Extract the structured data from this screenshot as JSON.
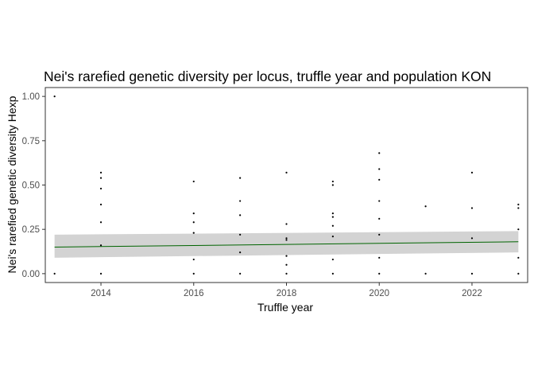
{
  "chart_data": {
    "type": "scatter",
    "title": "Nei's rarefied genetic diversity per locus, truffle year and population KON",
    "xlabel": "Truffle year",
    "ylabel": "Nei's rarefied genetic diversity Hexp",
    "xlim": [
      2012.8,
      2023.2
    ],
    "ylim": [
      -0.05,
      1.05
    ],
    "x_ticks": [
      2014,
      2016,
      2018,
      2020,
      2022
    ],
    "y_ticks": [
      0.0,
      0.25,
      0.5,
      0.75,
      1.0
    ],
    "x_tick_labels": [
      "2014",
      "2016",
      "2018",
      "2020",
      "2022"
    ],
    "y_tick_labels": [
      "0.00",
      "0.25",
      "0.50",
      "0.75",
      "1.00"
    ],
    "grid": false,
    "panel_border": true,
    "points": [
      {
        "x": 2013,
        "y": 1.0
      },
      {
        "x": 2013,
        "y": 0.0
      },
      {
        "x": 2014,
        "y": 0.57
      },
      {
        "x": 2014,
        "y": 0.54
      },
      {
        "x": 2014,
        "y": 0.48
      },
      {
        "x": 2014,
        "y": 0.39
      },
      {
        "x": 2014,
        "y": 0.29
      },
      {
        "x": 2014,
        "y": 0.16
      },
      {
        "x": 2014,
        "y": 0.0
      },
      {
        "x": 2016,
        "y": 0.52
      },
      {
        "x": 2016,
        "y": 0.34
      },
      {
        "x": 2016,
        "y": 0.29
      },
      {
        "x": 2016,
        "y": 0.23
      },
      {
        "x": 2016,
        "y": 0.08
      },
      {
        "x": 2016,
        "y": 0.0
      },
      {
        "x": 2017,
        "y": 0.54
      },
      {
        "x": 2017,
        "y": 0.41
      },
      {
        "x": 2017,
        "y": 0.33
      },
      {
        "x": 2017,
        "y": 0.22
      },
      {
        "x": 2017,
        "y": 0.12
      },
      {
        "x": 2017,
        "y": 0.0
      },
      {
        "x": 2018,
        "y": 0.57
      },
      {
        "x": 2018,
        "y": 0.28
      },
      {
        "x": 2018,
        "y": 0.2
      },
      {
        "x": 2018,
        "y": 0.19
      },
      {
        "x": 2018,
        "y": 0.1
      },
      {
        "x": 2018,
        "y": 0.05
      },
      {
        "x": 2018,
        "y": 0.0
      },
      {
        "x": 2019,
        "y": 0.52
      },
      {
        "x": 2019,
        "y": 0.5
      },
      {
        "x": 2019,
        "y": 0.34
      },
      {
        "x": 2019,
        "y": 0.32
      },
      {
        "x": 2019,
        "y": 0.27
      },
      {
        "x": 2019,
        "y": 0.21
      },
      {
        "x": 2019,
        "y": 0.08
      },
      {
        "x": 2019,
        "y": 0.0
      },
      {
        "x": 2020,
        "y": 0.68
      },
      {
        "x": 2020,
        "y": 0.59
      },
      {
        "x": 2020,
        "y": 0.53
      },
      {
        "x": 2020,
        "y": 0.41
      },
      {
        "x": 2020,
        "y": 0.31
      },
      {
        "x": 2020,
        "y": 0.22
      },
      {
        "x": 2020,
        "y": 0.09
      },
      {
        "x": 2020,
        "y": 0.0
      },
      {
        "x": 2021,
        "y": 0.38
      },
      {
        "x": 2021,
        "y": 0.0
      },
      {
        "x": 2022,
        "y": 0.57
      },
      {
        "x": 2022,
        "y": 0.37
      },
      {
        "x": 2022,
        "y": 0.2
      },
      {
        "x": 2022,
        "y": 0.0
      },
      {
        "x": 2023,
        "y": 0.39
      },
      {
        "x": 2023,
        "y": 0.37
      },
      {
        "x": 2023,
        "y": 0.25
      },
      {
        "x": 2023,
        "y": 0.09
      },
      {
        "x": 2023,
        "y": 0.0
      }
    ],
    "trend": {
      "type": "linear",
      "x": [
        2013,
        2023
      ],
      "y": [
        0.15,
        0.18
      ],
      "ci_lower": [
        0.09,
        0.12
      ],
      "ci_upper": [
        0.22,
        0.24
      ]
    },
    "colors": {
      "point": "#000000",
      "trend_line": "#006400",
      "ci_band": "#d3d3d3",
      "panel_border": "#333333",
      "tick_label": "#4d4d4d"
    }
  }
}
